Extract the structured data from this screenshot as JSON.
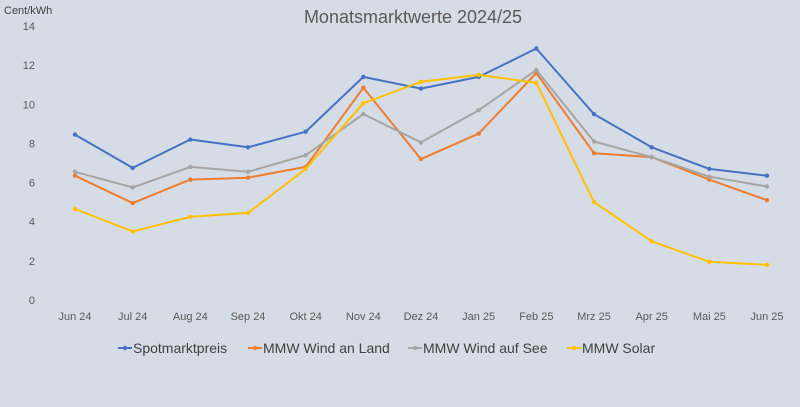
{
  "chart_data": {
    "type": "line",
    "title": "Monatsmarktwerte 2024/25",
    "ylabel": "Cent/kWh",
    "xlabel": "",
    "ylim": [
      0,
      14
    ],
    "yticks": [
      0,
      2,
      4,
      6,
      8,
      10,
      12,
      14
    ],
    "grid": false,
    "legend_position": "bottom",
    "categories": [
      "Jun 24",
      "Jul 24",
      "Aug 24",
      "Sep 24",
      "Okt 24",
      "Nov 24",
      "Dez 24",
      "Jan 25",
      "Feb 25",
      "Mrz 25",
      "Apr 25",
      "Mai 25",
      "Jun 25"
    ],
    "series": [
      {
        "name": "Spotmarktpreis",
        "color": "#4472c4",
        "values": [
          8.45,
          6.75,
          8.2,
          7.8,
          8.6,
          11.4,
          10.8,
          11.4,
          12.85,
          9.5,
          7.8,
          6.7,
          6.35
        ]
      },
      {
        "name": "MMW Wind an Land",
        "color": "#ed7d31",
        "values": [
          6.35,
          4.95,
          6.15,
          6.25,
          6.8,
          10.85,
          7.2,
          8.5,
          11.6,
          7.5,
          7.3,
          6.15,
          5.1
        ]
      },
      {
        "name": "MMW Wind auf See",
        "color": "#a5a5a5",
        "values": [
          6.55,
          5.75,
          6.8,
          6.55,
          7.4,
          9.5,
          8.05,
          9.7,
          11.75,
          8.1,
          7.3,
          6.3,
          5.8
        ]
      },
      {
        "name": "MMW Solar",
        "color": "#ffc000",
        "values": [
          4.65,
          3.5,
          4.25,
          4.45,
          6.7,
          10.05,
          11.15,
          11.5,
          11.1,
          5.0,
          3.0,
          1.95,
          1.8
        ]
      }
    ]
  }
}
